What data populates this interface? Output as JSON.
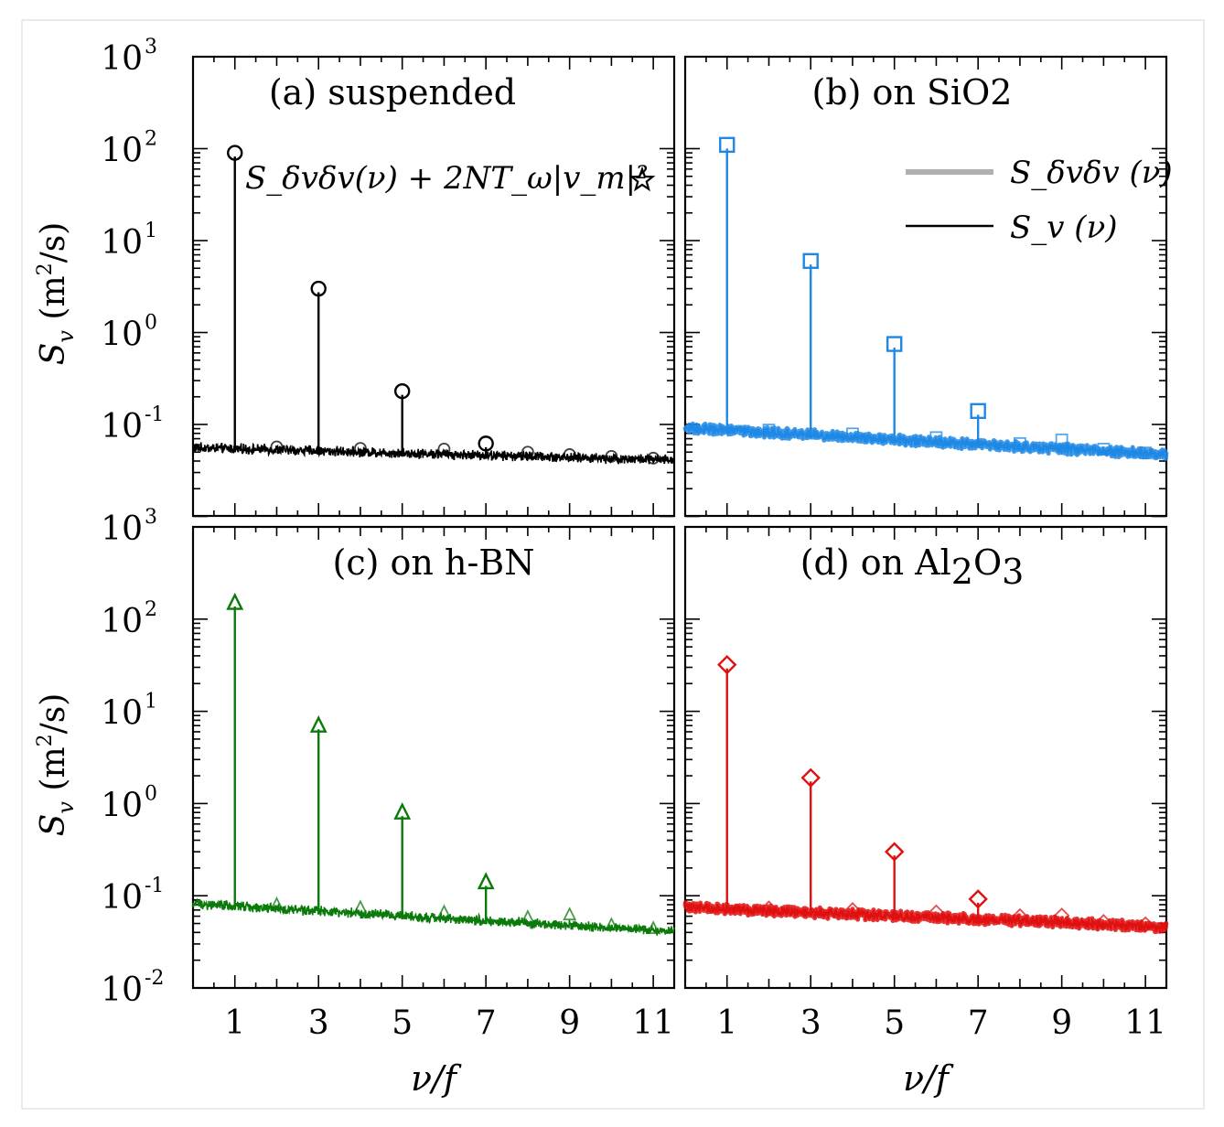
{
  "chart_data": [
    {
      "type": "line",
      "panel": "a",
      "title": "(a) suspended",
      "color": "#000000",
      "marker": "circle",
      "ylabel": "S_v (m²/s)",
      "xlabel": "",
      "yscale": "log",
      "ylim": [
        0.01,
        1000
      ],
      "xlim": [
        0,
        11.5
      ],
      "x_ticks": [
        "1",
        "3",
        "5",
        "7",
        "9",
        "11"
      ],
      "y_tick_exponents": [
        "3",
        "2",
        "1",
        "0",
        "-1"
      ],
      "baseline": {
        "x": [
          0,
          11.5
        ],
        "y": [
          0.056,
          0.041
        ]
      },
      "peaks": {
        "x": [
          1,
          3,
          5,
          7
        ],
        "y": [
          90,
          3.0,
          0.23,
          0.062
        ]
      },
      "markers": {
        "x": [
          1,
          2,
          3,
          4,
          5,
          6,
          7,
          8,
          9,
          10,
          11
        ],
        "y": [
          90,
          0.057,
          3.0,
          0.055,
          0.23,
          0.054,
          0.062,
          0.05,
          0.047,
          0.045,
          0.043
        ]
      },
      "annotation": "S_δvδv(ν) + 2NT_ω|v_m|²",
      "annotation_marker": "star"
    },
    {
      "type": "line",
      "panel": "b",
      "title": "(b) on SiO2",
      "color": "#1e88e5",
      "marker": "square",
      "xlabel": "",
      "yscale": "log",
      "ylim": [
        0.01,
        1000
      ],
      "xlim": [
        0,
        11.5
      ],
      "baseline": {
        "x": [
          0,
          11.5
        ],
        "y": [
          0.092,
          0.047
        ]
      },
      "peaks": {
        "x": [
          1,
          3,
          5,
          7
        ],
        "y": [
          110,
          6.0,
          0.75,
          0.14
        ]
      },
      "markers": {
        "x": [
          1,
          2,
          3,
          4,
          5,
          6,
          7,
          8,
          9,
          10,
          11
        ],
        "y": [
          110,
          0.087,
          6.0,
          0.079,
          0.75,
          0.072,
          0.14,
          0.062,
          0.068,
          0.054,
          0.049
        ]
      },
      "legend": [
        "S_δvδv (ν)",
        "S_v (ν)"
      ],
      "legend_colors": [
        "#b0b0b0",
        "#000000"
      ]
    },
    {
      "type": "line",
      "panel": "c",
      "title": "(c) on h-BN",
      "color": "#0a7a0a",
      "marker": "triangle",
      "ylabel": "S_v (m²/s)",
      "xlabel": "ν/f",
      "yscale": "log",
      "ylim": [
        0.01,
        1000
      ],
      "xlim": [
        0,
        11.5
      ],
      "x_ticks": [
        "1",
        "3",
        "5",
        "7",
        "9",
        "11"
      ],
      "y_tick_exponents": [
        "3",
        "2",
        "1",
        "0",
        "-1",
        "-2"
      ],
      "baseline": {
        "x": [
          0,
          11.5
        ],
        "y": [
          0.082,
          0.041
        ]
      },
      "peaks": {
        "x": [
          1,
          3,
          5,
          7
        ],
        "y": [
          150,
          7.0,
          0.8,
          0.14
        ]
      },
      "markers": {
        "x": [
          1,
          2,
          3,
          4,
          5,
          6,
          7,
          8,
          9,
          10,
          11
        ],
        "y": [
          150,
          0.08,
          7.0,
          0.074,
          0.8,
          0.066,
          0.14,
          0.058,
          0.062,
          0.048,
          0.044
        ]
      }
    },
    {
      "type": "line",
      "panel": "d",
      "title": "(d) on Al2O3",
      "color": "#e01010",
      "marker": "diamond",
      "xlabel": "ν/f",
      "yscale": "log",
      "ylim": [
        0.01,
        1000
      ],
      "xlim": [
        0,
        11.5
      ],
      "x_ticks": [
        "1",
        "3",
        "5",
        "7",
        "9",
        "11"
      ],
      "baseline": {
        "x": [
          0,
          11.5
        ],
        "y": [
          0.075,
          0.046
        ]
      },
      "peaks": {
        "x": [
          1,
          3,
          5,
          7
        ],
        "y": [
          32,
          1.9,
          0.3,
          0.092
        ]
      },
      "markers": {
        "x": [
          1,
          2,
          3,
          4,
          5,
          6,
          7,
          8,
          9,
          10,
          11
        ],
        "y": [
          32,
          0.073,
          1.9,
          0.07,
          0.3,
          0.066,
          0.092,
          0.06,
          0.061,
          0.052,
          0.049
        ]
      }
    }
  ]
}
